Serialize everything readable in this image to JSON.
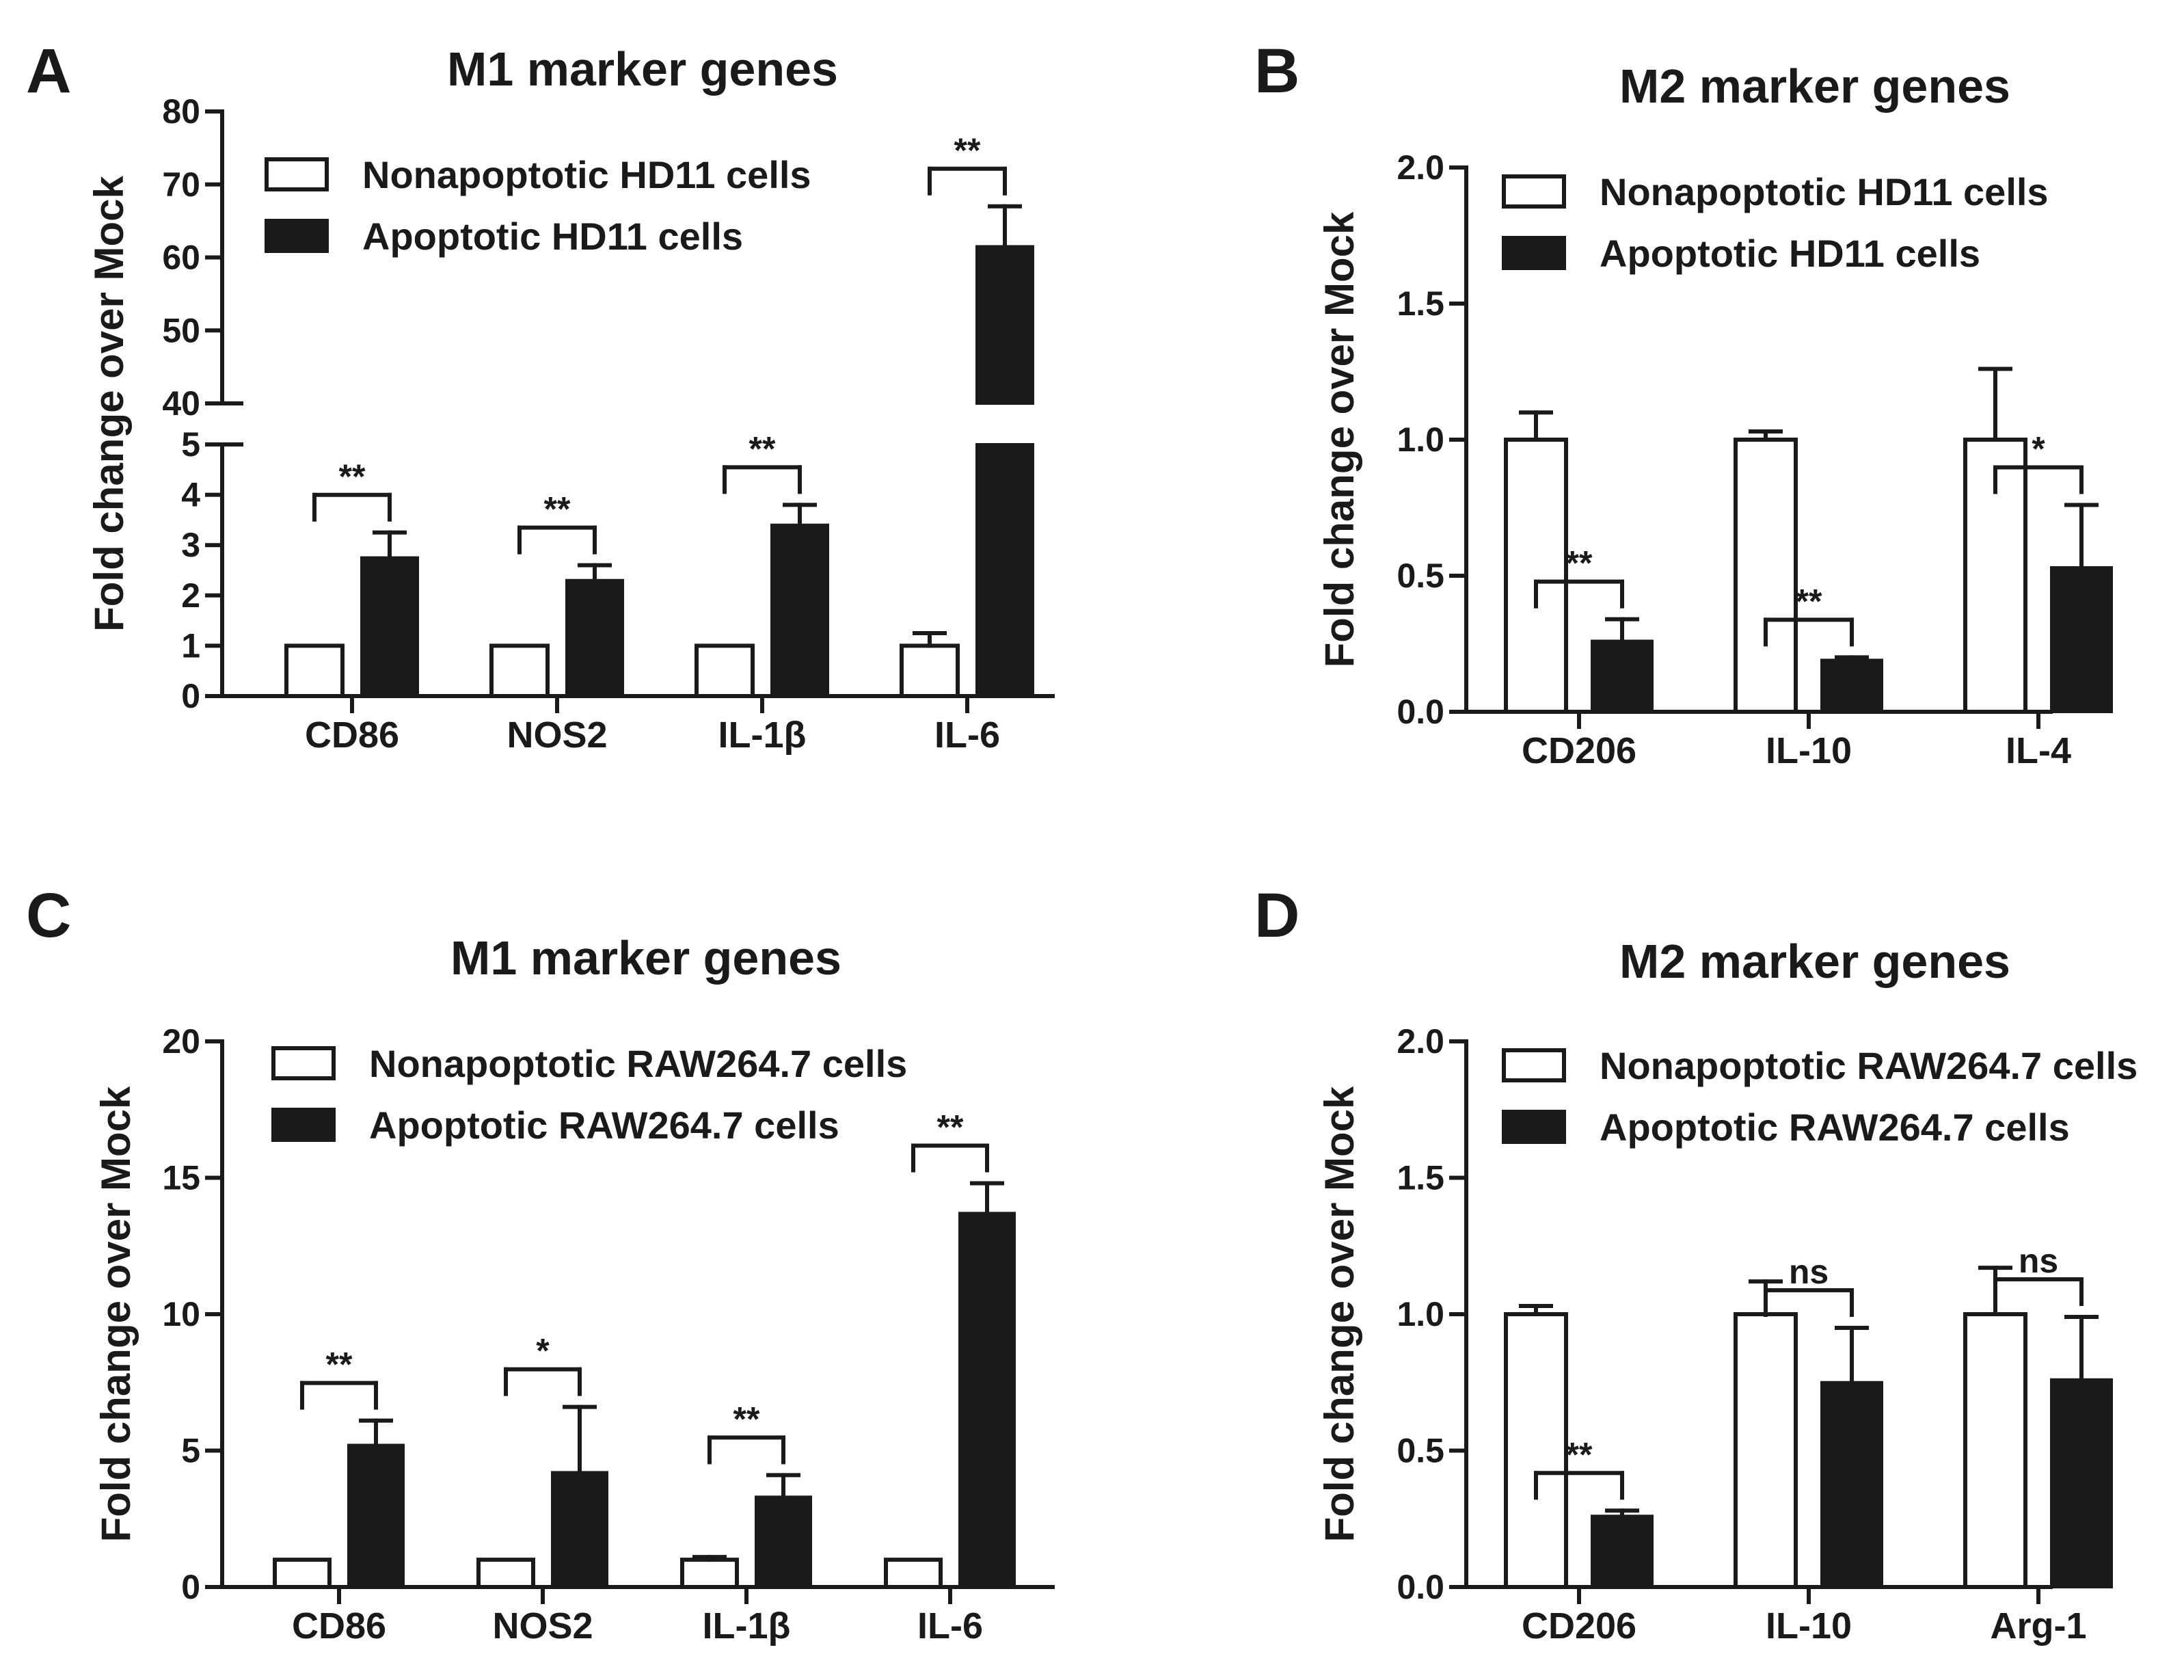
{
  "figure": {
    "panels": [
      "A",
      "B",
      "C",
      "D"
    ]
  },
  "chart_data": [
    {
      "panel": "A",
      "type": "bar",
      "title": "M1 marker genes",
      "xlabel": "",
      "ylabel": "Fold change over Mock",
      "categories": [
        "CD86",
        "NOS2",
        "IL-1β",
        "IL-6"
      ],
      "series": [
        {
          "name": "Nonapoptotic HD11 cells",
          "values": [
            1.0,
            1.0,
            1.0,
            1.0
          ],
          "errors": [
            0.0,
            0.0,
            0.0,
            0.25
          ],
          "fill": "#ffffff"
        },
        {
          "name": "Apoptotic HD11 cells",
          "values": [
            2.75,
            2.3,
            3.4,
            61.5
          ],
          "errors": [
            0.5,
            0.3,
            0.4,
            5.5
          ],
          "fill": "#1a1a1a"
        }
      ],
      "significance": [
        "**",
        "**",
        "**",
        "**"
      ],
      "axis_break": {
        "lower": [
          0,
          5
        ],
        "upper": [
          40,
          80
        ]
      },
      "lower_ticks": [
        0,
        1,
        2,
        3,
        4,
        5
      ],
      "upper_ticks": [
        40,
        50,
        60,
        70,
        80
      ],
      "ylim": [
        0,
        80
      ],
      "legend_position": "top-left"
    },
    {
      "panel": "B",
      "type": "bar",
      "title": "M2 marker genes",
      "xlabel": "",
      "ylabel": "Fold change over Mock",
      "categories": [
        "CD206",
        "IL-10",
        "IL-4"
      ],
      "series": [
        {
          "name": "Nonapoptotic HD11 cells",
          "values": [
            1.0,
            1.0,
            1.0
          ],
          "errors": [
            0.1,
            0.03,
            0.26
          ],
          "fill": "#ffffff"
        },
        {
          "name": "Apoptotic HD11 cells",
          "values": [
            0.26,
            0.19,
            0.53
          ],
          "errors": [
            0.08,
            0.01,
            0.23
          ],
          "fill": "#1a1a1a"
        }
      ],
      "significance": [
        "**",
        "**",
        "*"
      ],
      "ticks": [
        "0.0",
        "0.5",
        "1.0",
        "1.5",
        "2.0"
      ],
      "ylim": [
        0,
        2.0
      ],
      "legend_position": "top"
    },
    {
      "panel": "C",
      "type": "bar",
      "title": "M1 marker genes",
      "xlabel": "",
      "ylabel": "Fold change over Mock",
      "categories": [
        "CD86",
        "NOS2",
        "IL-1β",
        "IL-6"
      ],
      "series": [
        {
          "name": "Nonapoptotic RAW264.7 cells",
          "values": [
            1.0,
            1.0,
            1.0,
            1.0
          ],
          "errors": [
            0.0,
            0.0,
            0.1,
            0.0
          ],
          "fill": "#ffffff"
        },
        {
          "name": "Apoptotic RAW264.7 cells",
          "values": [
            5.2,
            4.2,
            3.3,
            13.7
          ],
          "errors": [
            0.9,
            2.4,
            0.8,
            1.1
          ],
          "fill": "#1a1a1a"
        }
      ],
      "significance": [
        "**",
        "*",
        "**",
        "**"
      ],
      "ticks": [
        "0",
        "5",
        "10",
        "15",
        "20"
      ],
      "ylim": [
        0,
        20
      ],
      "legend_position": "top-left"
    },
    {
      "panel": "D",
      "type": "bar",
      "title": "M2 marker genes",
      "xlabel": "",
      "ylabel": "Fold change over Mock",
      "categories": [
        "CD206",
        "IL-10",
        "Arg-1"
      ],
      "series": [
        {
          "name": "Nonapoptotic RAW264.7 cells",
          "values": [
            1.0,
            1.0,
            1.0
          ],
          "errors": [
            0.03,
            0.12,
            0.17
          ],
          "fill": "#ffffff"
        },
        {
          "name": "Apoptotic RAW264.7 cells",
          "values": [
            0.26,
            0.75,
            0.76
          ],
          "errors": [
            0.02,
            0.2,
            0.23
          ],
          "fill": "#1a1a1a"
        }
      ],
      "significance": [
        "**",
        "ns",
        "ns"
      ],
      "ticks": [
        "0.0",
        "0.5",
        "1.0",
        "1.5",
        "2.0"
      ],
      "ylim": [
        0,
        2.0
      ],
      "legend_position": "top"
    }
  ]
}
